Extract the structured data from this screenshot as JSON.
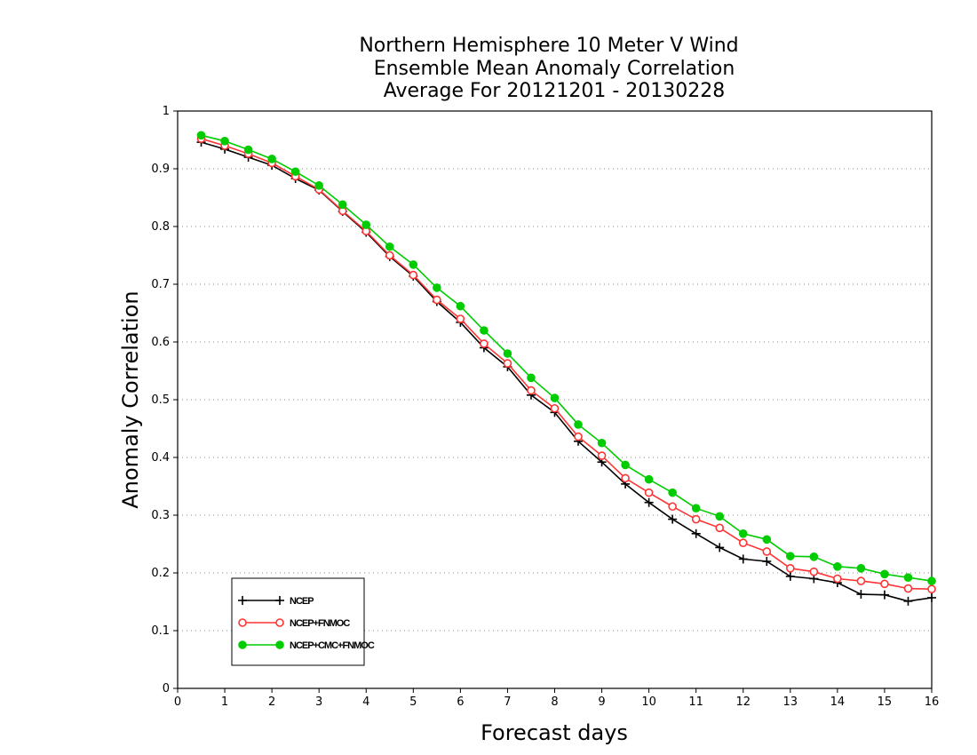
{
  "chart_data": {
    "type": "line",
    "title": [
      "Northern Hemisphere 10 Meter V Wind",
      "Ensemble Mean Anomaly Correlation",
      "Average For 20121201 - 20130228"
    ],
    "xlabel": "Forecast days",
    "ylabel": "Anomaly Correlation",
    "xlim": [
      0,
      16
    ],
    "ylim": [
      0,
      1
    ],
    "xticks": [
      "0",
      "1",
      "2",
      "3",
      "4",
      "5",
      "6",
      "7",
      "8",
      "9",
      "10",
      "11",
      "12",
      "13",
      "14",
      "15",
      "16"
    ],
    "yticks": [
      "0",
      "0.1",
      "0.2",
      "0.3",
      "0.4",
      "0.5",
      "0.6",
      "0.7",
      "0.8",
      "0.9",
      "1"
    ],
    "grid": "horizontal-dotted",
    "legend_position": "bottom-left",
    "x": [
      0.5,
      1,
      1.5,
      2,
      2.5,
      3,
      3.5,
      4,
      4.5,
      5,
      5.5,
      6,
      6.5,
      7,
      7.5,
      8,
      8.5,
      9,
      9.5,
      10,
      10.5,
      11,
      11.5,
      12,
      12.5,
      13,
      13.5,
      14,
      14.5,
      15,
      15.5,
      16
    ],
    "series": [
      {
        "name": "NCEP",
        "color": "#000000",
        "marker": "plus",
        "values": [
          0.946,
          0.934,
          0.92,
          0.906,
          0.883,
          0.863,
          0.826,
          0.79,
          0.748,
          0.714,
          0.67,
          0.634,
          0.59,
          0.557,
          0.508,
          0.478,
          0.428,
          0.392,
          0.354,
          0.322,
          0.293,
          0.268,
          0.244,
          0.224,
          0.22,
          0.194,
          0.19,
          0.183,
          0.163,
          0.162,
          0.151,
          0.157
        ]
      },
      {
        "name": "NCEP+FNMOC",
        "color": "#ff3333",
        "marker": "open-circle",
        "values": [
          0.952,
          0.94,
          0.926,
          0.91,
          0.887,
          0.864,
          0.827,
          0.792,
          0.75,
          0.716,
          0.673,
          0.64,
          0.597,
          0.563,
          0.516,
          0.485,
          0.436,
          0.403,
          0.364,
          0.339,
          0.315,
          0.293,
          0.278,
          0.252,
          0.237,
          0.208,
          0.202,
          0.19,
          0.186,
          0.181,
          0.173,
          0.172
        ]
      },
      {
        "name": "NCEP+CMC+FNMOC",
        "color": "#00cc00",
        "marker": "filled-circle",
        "values": [
          0.958,
          0.948,
          0.933,
          0.917,
          0.895,
          0.871,
          0.838,
          0.803,
          0.765,
          0.734,
          0.694,
          0.662,
          0.62,
          0.58,
          0.538,
          0.503,
          0.457,
          0.425,
          0.387,
          0.362,
          0.339,
          0.312,
          0.298,
          0.268,
          0.258,
          0.229,
          0.228,
          0.211,
          0.208,
          0.198,
          0.192,
          0.186
        ]
      }
    ]
  }
}
